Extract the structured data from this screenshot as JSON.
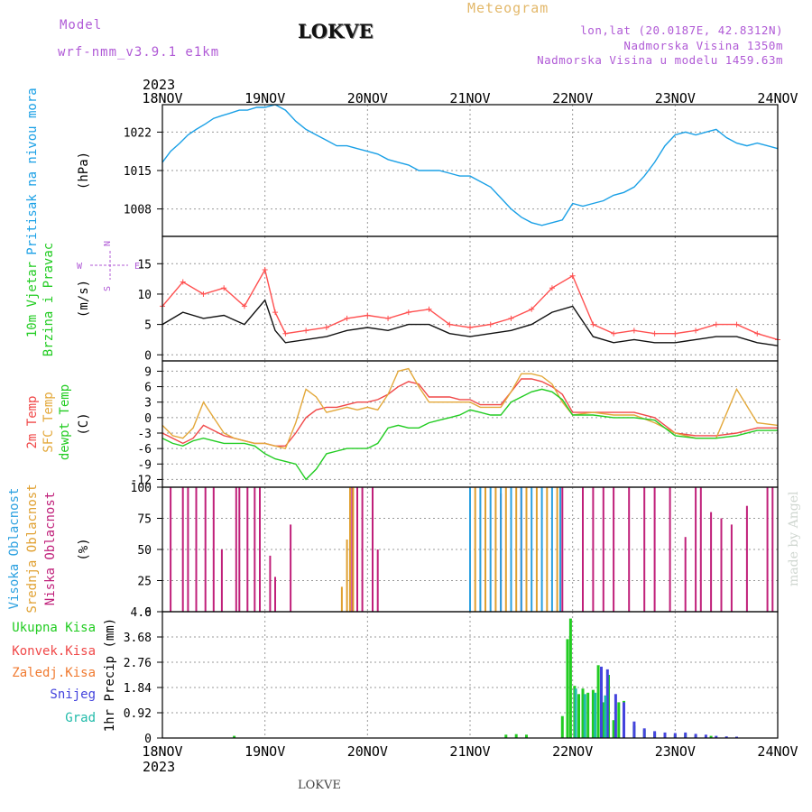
{
  "header": {
    "model_label": "Model",
    "model_name": "wrf-nmm_v3.9.1 e1km",
    "station": "LOKVE",
    "title": "Meteogram",
    "lonlat": "lon,lat (20.0187E, 42.8312N)",
    "altitude": "Nadmorska Visina 1350m",
    "model_altitude": "Nadmorska Visina u modelu 1459.63m"
  },
  "footer": {
    "station": "LOKVE",
    "credit": "made by Angel"
  },
  "colors": {
    "pressure": "#1aa0e6",
    "temp2m": "#f04848",
    "sfc": "#e3a83a",
    "dewpt": "#22cc22",
    "cloud_high": "#2aa0e0",
    "cloud_mid": "#e0a030",
    "cloud_low": "#c0207a",
    "precip_total": "#22cc22",
    "precip_conv": "#f04848",
    "precip_frz": "#f07a30",
    "snow": "#4444dd",
    "graupel": "#22bbaa",
    "wind_speed": "#111111",
    "wind_gust": "#ff5050"
  },
  "chart_data": [
    {
      "type": "line",
      "panel": "pressure",
      "ylabel": "Pritisak na nivou mora",
      "unit": "(hPa)",
      "top_year": "2023",
      "x_ticks": [
        "18NOV",
        "19NOV",
        "20NOV",
        "21NOV",
        "22NOV",
        "23NOV",
        "24NOV"
      ],
      "y_ticks": [
        1008,
        1015,
        1022
      ],
      "ylim": [
        1003,
        1027
      ],
      "series": [
        {
          "color": "#1aa0e6",
          "x": [
            0,
            0.08,
            0.17,
            0.25,
            0.33,
            0.42,
            0.5,
            0.58,
            0.67,
            0.75,
            0.83,
            0.92,
            1.0,
            1.1,
            1.2,
            1.3,
            1.4,
            1.5,
            1.6,
            1.7,
            1.8,
            1.9,
            2.0,
            2.1,
            2.2,
            2.3,
            2.4,
            2.5,
            2.6,
            2.7,
            2.8,
            2.9,
            3.0,
            3.1,
            3.2,
            3.3,
            3.4,
            3.5,
            3.6,
            3.7,
            3.8,
            3.9,
            4.0,
            4.1,
            4.2,
            4.3,
            4.4,
            4.5,
            4.6,
            4.7,
            4.8,
            4.9,
            5.0,
            5.1,
            5.2,
            5.3,
            5.4,
            5.5,
            5.6,
            5.7,
            5.8,
            5.9,
            6.0
          ],
          "y": [
            1016.5,
            1018.5,
            1020,
            1021.5,
            1022.5,
            1023.5,
            1024.5,
            1025,
            1025.5,
            1026,
            1026,
            1026.5,
            1026.5,
            1027,
            1026,
            1024,
            1022.5,
            1021.5,
            1020.5,
            1019.5,
            1019.5,
            1019,
            1018.5,
            1018,
            1017,
            1016.5,
            1016,
            1015,
            1015,
            1015,
            1014.5,
            1014,
            1014,
            1013,
            1012,
            1010,
            1008,
            1006.5,
            1005.5,
            1005,
            1005.5,
            1006,
            1009,
            1008.5,
            1009,
            1009.5,
            1010.5,
            1011,
            1012,
            1014,
            1016.5,
            1019.5,
            1021.5,
            1022,
            1021.5,
            1022,
            1022.5,
            1021,
            1020,
            1019.5,
            1020,
            1019.5,
            1019
          ]
        }
      ]
    },
    {
      "type": "line",
      "panel": "wind",
      "ylabel_1": "10m Vjetar",
      "ylabel_2": "Brzina i Pravac",
      "unit": "(m/s)",
      "compass_n": "N",
      "compass_w": "W",
      "compass_e": "E",
      "compass_s": "S",
      "y_ticks": [
        0,
        5,
        10,
        15
      ],
      "ylim": [
        -1,
        19.5
      ],
      "series": [
        {
          "name": "speed",
          "color": "#111111",
          "x": [
            0,
            0.2,
            0.4,
            0.6,
            0.8,
            1.0,
            1.1,
            1.2,
            1.4,
            1.6,
            1.8,
            2.0,
            2.2,
            2.4,
            2.6,
            2.8,
            3.0,
            3.2,
            3.4,
            3.6,
            3.8,
            4.0,
            4.2,
            4.4,
            4.6,
            4.8,
            5.0,
            5.2,
            5.4,
            5.6,
            5.8,
            6.0
          ],
          "y": [
            5,
            7,
            6,
            6.5,
            5,
            9,
            4,
            2,
            2.5,
            3,
            4,
            4.5,
            4,
            5,
            5,
            3.5,
            3,
            3.5,
            4,
            5,
            7,
            8,
            3,
            2,
            2.5,
            2,
            2,
            2.5,
            3,
            3,
            2,
            1.5
          ]
        },
        {
          "name": "gust",
          "color": "#ff5050",
          "x": [
            0,
            0.2,
            0.4,
            0.6,
            0.8,
            1.0,
            1.1,
            1.2,
            1.4,
            1.6,
            1.8,
            2.0,
            2.2,
            2.4,
            2.6,
            2.8,
            3.0,
            3.2,
            3.4,
            3.6,
            3.8,
            4.0,
            4.2,
            4.4,
            4.6,
            4.8,
            5.0,
            5.2,
            5.4,
            5.6,
            5.8,
            6.0
          ],
          "y": [
            8,
            12,
            10,
            11,
            8,
            14,
            7,
            3.5,
            4,
            4.5,
            6,
            6.5,
            6,
            7,
            7.5,
            5,
            4.5,
            5,
            6,
            7.5,
            11,
            13,
            5,
            3.5,
            4,
            3.5,
            3.5,
            4,
            5,
            5,
            3.5,
            2.5
          ]
        }
      ]
    },
    {
      "type": "line",
      "panel": "temperature",
      "ylabel_1": "2m Temp",
      "ylabel_2": "SFC Temp",
      "ylabel_3": "dewpt Temp",
      "unit": "(C)",
      "y_ticks": [
        -12,
        -9,
        -6,
        -3,
        0,
        3,
        6,
        9
      ],
      "ylim": [
        -13.5,
        11
      ],
      "series": [
        {
          "name": "2m Temp",
          "color": "#f04848",
          "x": [
            0,
            0.1,
            0.2,
            0.3,
            0.4,
            0.5,
            0.6,
            0.7,
            0.8,
            0.9,
            1.0,
            1.1,
            1.2,
            1.3,
            1.4,
            1.5,
            1.6,
            1.7,
            1.8,
            1.9,
            2.0,
            2.1,
            2.2,
            2.3,
            2.4,
            2.5,
            2.6,
            2.7,
            2.8,
            2.9,
            3.0,
            3.1,
            3.2,
            3.3,
            3.4,
            3.5,
            3.6,
            3.7,
            3.8,
            3.9,
            4.0,
            4.2,
            4.4,
            4.6,
            4.8,
            5.0,
            5.2,
            5.4,
            5.6,
            5.8,
            6.0
          ],
          "y": [
            -3,
            -4,
            -5,
            -4,
            -1.5,
            -2.5,
            -3.5,
            -4,
            -4.5,
            -5,
            -5,
            -5.5,
            -5.5,
            -3,
            0,
            1.5,
            2,
            2,
            2.5,
            3,
            3,
            3.5,
            4.5,
            6,
            7,
            6.5,
            4,
            4,
            4,
            3.5,
            3.5,
            2.5,
            2.5,
            2.5,
            5,
            7.5,
            7.5,
            7,
            6,
            4.5,
            1,
            1,
            1,
            1,
            0,
            -3,
            -3.5,
            -3.5,
            -3,
            -2,
            -2
          ]
        },
        {
          "name": "SFC Temp",
          "color": "#e3a83a",
          "x": [
            0,
            0.1,
            0.2,
            0.3,
            0.4,
            0.5,
            0.6,
            0.7,
            0.8,
            0.9,
            1.0,
            1.1,
            1.2,
            1.3,
            1.4,
            1.5,
            1.6,
            1.7,
            1.8,
            1.9,
            2.0,
            2.1,
            2.2,
            2.3,
            2.4,
            2.5,
            2.6,
            2.7,
            2.8,
            2.9,
            3.0,
            3.1,
            3.2,
            3.3,
            3.4,
            3.5,
            3.6,
            3.7,
            3.8,
            3.9,
            4.0,
            4.2,
            4.4,
            4.6,
            4.8,
            5.0,
            5.2,
            5.4,
            5.6,
            5.8,
            6.0
          ],
          "y": [
            -1.5,
            -3.5,
            -4,
            -2,
            3,
            0,
            -3,
            -4,
            -4.5,
            -5,
            -5,
            -5.5,
            -6,
            -1,
            5.5,
            4,
            1,
            1.5,
            2,
            1.5,
            2,
            1.5,
            4.5,
            9,
            9.5,
            6,
            3,
            3,
            3,
            3,
            3,
            2,
            2,
            2,
            5,
            8.5,
            8.5,
            8,
            6.5,
            3,
            0.5,
            1,
            0.5,
            0.5,
            -1,
            -3,
            -4,
            -4,
            5.5,
            -1,
            -1.5
          ]
        },
        {
          "name": "dewpt Temp",
          "color": "#22cc22",
          "x": [
            0,
            0.1,
            0.2,
            0.3,
            0.4,
            0.5,
            0.6,
            0.7,
            0.8,
            0.9,
            1.0,
            1.1,
            1.2,
            1.3,
            1.4,
            1.5,
            1.6,
            1.7,
            1.8,
            1.9,
            2.0,
            2.1,
            2.2,
            2.3,
            2.4,
            2.5,
            2.6,
            2.7,
            2.8,
            2.9,
            3.0,
            3.1,
            3.2,
            3.3,
            3.4,
            3.5,
            3.6,
            3.7,
            3.8,
            3.9,
            4.0,
            4.2,
            4.4,
            4.6,
            4.8,
            5.0,
            5.2,
            5.4,
            5.6,
            5.8,
            6.0
          ],
          "y": [
            -4,
            -5,
            -5.5,
            -4.5,
            -4,
            -4.5,
            -5,
            -5,
            -5,
            -5.5,
            -7,
            -8,
            -8.5,
            -9,
            -12,
            -10,
            -7,
            -6.5,
            -6,
            -6,
            -6,
            -5,
            -2,
            -1.5,
            -2,
            -2,
            -1,
            -0.5,
            0,
            0.5,
            1.5,
            1,
            0.5,
            0.5,
            3,
            4,
            5,
            5.5,
            5,
            3.5,
            0.5,
            0.5,
            0,
            0,
            -0.5,
            -3.5,
            -4,
            -4,
            -3.5,
            -2.5,
            -2.5
          ]
        }
      ]
    },
    {
      "type": "bar",
      "panel": "clouds",
      "ylabel_1": "Visoka Oblacnost",
      "ylabel_2": "Srednja Oblacnost",
      "ylabel_3": "Niska Oblacnost",
      "unit": "(%)",
      "y_ticks": [
        0,
        25,
        50,
        75,
        100
      ],
      "ylim": [
        0,
        100
      ],
      "series": [
        {
          "name": "Niska Oblacnost",
          "color": "#c0207a",
          "x": [
            0.08,
            0.2,
            0.25,
            0.33,
            0.42,
            0.5,
            0.58,
            0.72,
            0.75,
            0.83,
            0.9,
            0.95,
            1.05,
            1.1,
            1.25,
            1.85,
            1.9,
            1.95,
            2.05,
            2.1,
            3.3,
            3.5,
            3.9,
            4.1,
            4.2,
            4.3,
            4.4,
            4.55,
            4.7,
            4.8,
            4.95,
            5.1,
            5.2,
            5.25,
            5.35,
            5.45,
            5.55,
            5.7,
            5.9,
            5.95
          ],
          "y": [
            100,
            100,
            100,
            100,
            100,
            100,
            50,
            100,
            100,
            100,
            100,
            100,
            45,
            28,
            70,
            100,
            100,
            100,
            100,
            50,
            95,
            100,
            100,
            100,
            100,
            100,
            100,
            100,
            100,
            100,
            100,
            60,
            100,
            100,
            80,
            75,
            70,
            85,
            100,
            100
          ]
        },
        {
          "name": "Srednja Oblacnost",
          "color": "#e0a030",
          "x": [
            1.75,
            1.8,
            1.83,
            1.86,
            3.05,
            3.15,
            3.25,
            3.35,
            3.45,
            3.55,
            3.65,
            3.75,
            3.85
          ],
          "y": [
            20,
            58,
            100,
            100,
            100,
            100,
            100,
            100,
            100,
            100,
            100,
            100,
            100
          ]
        },
        {
          "name": "Visoka Oblacnost",
          "color": "#2aa0e0",
          "x": [
            3.0,
            3.1,
            3.2,
            3.3,
            3.4,
            3.5,
            3.6,
            3.7,
            3.8,
            3.88
          ],
          "y": [
            100,
            100,
            100,
            100,
            100,
            100,
            100,
            100,
            100,
            100
          ]
        }
      ]
    },
    {
      "type": "bar",
      "panel": "precip",
      "ylabel_1": "Ukupna Kisa",
      "ylabel_2": "Konvek.Kisa",
      "ylabel_3": "Zaledj.Kisa",
      "ylabel_4": "Snijeg",
      "ylabel_5": "Grad",
      "unit": "1hr Precip (mm)",
      "bottom_year": "2023",
      "y_ticks": [
        "0",
        "0.92",
        "1.84",
        "2.76",
        "3.68",
        "4.6"
      ],
      "ylim": [
        0,
        4.6
      ],
      "series": [
        {
          "name": "Ukupna Kisa",
          "color": "#22cc22",
          "x": [
            0.7,
            3.35,
            3.45,
            3.55,
            3.9,
            3.95,
            3.98,
            4.02,
            4.06,
            4.1,
            4.15,
            4.2,
            4.25,
            4.3,
            4.35,
            4.4,
            4.45,
            4.5,
            4.6,
            4.7,
            4.8,
            4.9,
            5.0,
            5.1,
            5.2,
            5.35
          ],
          "y": [
            0.08,
            0.12,
            0.14,
            0.12,
            0.8,
            3.6,
            4.35,
            1.9,
            1.6,
            1.8,
            1.65,
            1.75,
            2.65,
            1.3,
            2.3,
            0.65,
            1.3,
            1.35,
            0.45,
            0.3,
            0.2,
            0.15,
            0.12,
            0.15,
            0.1,
            0.08
          ]
        },
        {
          "name": "Snijeg",
          "color": "#4444dd",
          "x": [
            4.28,
            4.34,
            4.42,
            4.5,
            4.6,
            4.7,
            4.8,
            4.9,
            5.0,
            5.1,
            5.2,
            5.3,
            5.4,
            5.5,
            5.6
          ],
          "y": [
            2.6,
            2.5,
            1.6,
            1.3,
            0.6,
            0.35,
            0.25,
            0.2,
            0.18,
            0.2,
            0.15,
            0.12,
            0.08,
            0.06,
            0.05
          ]
        },
        {
          "name": "Grad",
          "color": "#22bbaa",
          "x": [
            4.03,
            4.12,
            4.22,
            4.32
          ],
          "y": [
            1.8,
            1.6,
            1.65,
            1.55
          ]
        }
      ]
    }
  ]
}
